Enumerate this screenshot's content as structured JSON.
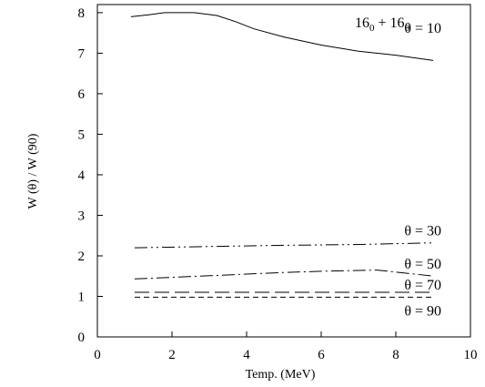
{
  "chart_data": {
    "type": "line",
    "xlabel": "Temp. (MeV)",
    "ylabel": "W (θ) / W (90)",
    "xlim": [
      0,
      10
    ],
    "ylim": [
      0,
      8.2
    ],
    "xticks": [
      "0",
      "2",
      "4",
      "6",
      "8",
      "10"
    ],
    "yticks": [
      "0",
      "1",
      "2",
      "3",
      "4",
      "5",
      "6",
      "7",
      "8"
    ],
    "grid": false,
    "legend": "none",
    "annotation": {
      "reaction": {
        "a": "16",
        "asub": "0",
        "plus": " + ",
        "b": "16",
        "bsub": "0"
      }
    },
    "series": [
      {
        "name": "θ = 10",
        "style": "solid",
        "x": [
          0.9,
          1.4,
          1.8,
          2.2,
          2.6,
          3.2,
          3.7,
          4.2,
          5.0,
          6.0,
          7.0,
          8.0,
          9.0
        ],
        "y": [
          7.9,
          7.95,
          8.0,
          8.0,
          8.0,
          7.93,
          7.78,
          7.6,
          7.4,
          7.2,
          7.05,
          6.95,
          6.82
        ]
      },
      {
        "name": "θ = 30",
        "style": "dashdotdot",
        "x": [
          1.0,
          3.0,
          5.0,
          7.0,
          9.0
        ],
        "y": [
          2.2,
          2.23,
          2.26,
          2.28,
          2.32
        ]
      },
      {
        "name": "θ = 50",
        "style": "dashdot",
        "x": [
          1.0,
          2.0,
          3.0,
          4.0,
          5.0,
          6.0,
          7.0,
          7.5,
          8.0,
          8.5,
          9.0
        ],
        "y": [
          1.43,
          1.47,
          1.51,
          1.55,
          1.59,
          1.62,
          1.64,
          1.65,
          1.6,
          1.55,
          1.5
        ]
      },
      {
        "name": "θ = 70",
        "style": "longdash",
        "x": [
          1.0,
          9.0
        ],
        "y": [
          1.1,
          1.1
        ]
      },
      {
        "name": "θ = 90",
        "style": "shortdash",
        "x": [
          1.0,
          9.0
        ],
        "y": [
          0.98,
          0.98
        ]
      }
    ]
  }
}
